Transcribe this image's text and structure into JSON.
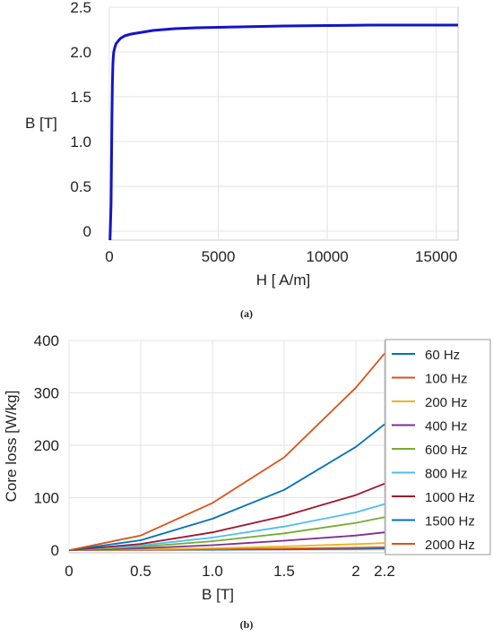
{
  "captions": {
    "a": "(a)",
    "b": "(b)"
  },
  "chart_data": [
    {
      "type": "line",
      "xlabel": "H [ A/m]",
      "ylabel": "B [T]",
      "xlim": [
        0,
        16000
      ],
      "ylim": [
        -0.1,
        2.5
      ],
      "xticks": [
        0,
        5000,
        10000,
        15000
      ],
      "xtick_labels": [
        "0",
        "5000",
        "10000",
        "15000"
      ],
      "yticks": [
        0,
        0.5,
        1.0,
        1.5,
        2.0,
        2.5
      ],
      "ytick_labels": [
        "0",
        "0.5",
        "1.0",
        "1.5",
        "2.0",
        "2.5"
      ],
      "grid": true,
      "color": "#1414c8",
      "series": [
        {
          "x": [
            30,
            80,
            100,
            120,
            140,
            160,
            180,
            200,
            250,
            300,
            400,
            500,
            700,
            1000,
            1500,
            2000,
            3000,
            4000,
            6000,
            8000,
            10000,
            12000,
            14000,
            16000
          ],
          "values": [
            -0.1,
            0.3,
            0.8,
            1.3,
            1.65,
            1.85,
            1.95,
            2.0,
            2.05,
            2.09,
            2.12,
            2.15,
            2.18,
            2.2,
            2.22,
            2.24,
            2.26,
            2.27,
            2.28,
            2.29,
            2.295,
            2.3,
            2.3,
            2.3
          ]
        }
      ]
    },
    {
      "type": "line",
      "xlabel": "B [T]",
      "ylabel": "Core loss [W/kg]",
      "xlim": [
        0,
        2.2
      ],
      "ylim": [
        -5,
        400
      ],
      "xticks": [
        0,
        0.5,
        1.0,
        1.5,
        2,
        2.2
      ],
      "xtick_labels": [
        "0",
        "0.5",
        "1.0",
        "1.5",
        "2",
        "2.2"
      ],
      "yticks": [
        0,
        100,
        200,
        300,
        400
      ],
      "ytick_labels": [
        "0",
        "100",
        "200",
        "300",
        "400"
      ],
      "grid": true,
      "legend_position": "right",
      "categories": [
        0,
        0.5,
        1.0,
        1.5,
        2.0,
        2.2
      ],
      "series": [
        {
          "name": "60 Hz",
          "color": "#0072bd",
          "values": [
            0,
            0.3,
            0.8,
            1.5,
            2.4,
            2.9
          ]
        },
        {
          "name": "100 Hz",
          "color": "#d95319",
          "values": [
            0,
            0.6,
            1.6,
            3.0,
            4.7,
            5.6
          ]
        },
        {
          "name": "200 Hz",
          "color": "#edb120",
          "values": [
            0,
            1.5,
            3.8,
            7.2,
            11.5,
            13.5
          ]
        },
        {
          "name": "400 Hz",
          "color": "#7e2f8e",
          "values": [
            0,
            3.5,
            9.5,
            18,
            28,
            34
          ]
        },
        {
          "name": "600 Hz",
          "color": "#77ac30",
          "values": [
            0,
            6.5,
            17,
            32,
            52,
            63
          ]
        },
        {
          "name": "800 Hz",
          "color": "#4dbeee",
          "values": [
            0,
            9,
            24,
            45,
            72,
            88
          ]
        },
        {
          "name": "1000 Hz",
          "color": "#a2142f",
          "values": [
            0,
            12,
            34,
            65,
            105,
            127
          ]
        },
        {
          "name": "1500 Hz",
          "color": "#0072bd",
          "values": [
            0,
            19,
            60,
            115,
            197,
            240
          ]
        },
        {
          "name": "2000 Hz",
          "color": "#d95319",
          "values": [
            0,
            28,
            90,
            177,
            310,
            375
          ]
        }
      ]
    }
  ]
}
